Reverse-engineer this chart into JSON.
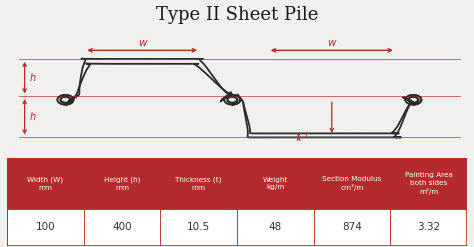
{
  "title": "Type II Sheet Pile",
  "title_fontsize": 13,
  "bg_color": "#f2f0ee",
  "table_header_bg": "#b52a2a",
  "table_header_text": "#ffffff",
  "table_data_bg": "#ffffff",
  "table_data_text": "#333333",
  "table_border": "#b52a2a",
  "headers": [
    "Width (W)\nmm",
    "Height (h)\nmm",
    "Thickness (t)\nmm",
    "Weight\nkg/m",
    "Section Modulus\ncm³/m",
    "Painting Area\nboth sides\nm²/m"
  ],
  "values": [
    "100",
    "400",
    "10.5",
    "48",
    "874",
    "3.32"
  ],
  "diagram_line_color": "#2a2a2a",
  "arrow_color": "#b52a2a",
  "line_width": 1.3,
  "thin_line": 0.5
}
